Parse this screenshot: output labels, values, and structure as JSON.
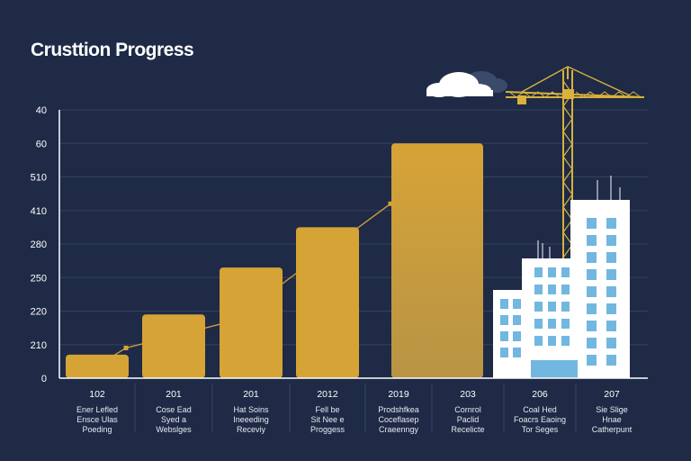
{
  "chart_data": {
    "type": "bar",
    "title": "Crusttion Progress",
    "xlabel": "",
    "ylabel": "",
    "grid": true,
    "y_tick_labels": [
      "0",
      "210",
      "220",
      "250",
      "280",
      "410",
      "510",
      "60",
      "40"
    ],
    "y_tick_values": [
      0,
      1,
      2,
      3,
      4,
      5,
      6,
      7,
      8
    ],
    "ylim": [
      0,
      8
    ],
    "categories": [
      "102",
      "201",
      "201",
      "2012",
      "2019",
      "203",
      "206",
      "207"
    ],
    "category_captions": [
      [
        "Ener Lefled",
        "Ensce Ulas",
        "Poeding"
      ],
      [
        "Cose Ead",
        "Syed a",
        "Webslges"
      ],
      [
        "Hat Soins",
        "Ineeeding",
        "Receviy"
      ],
      [
        "Fell be",
        "Sit Nee e",
        "Proggess"
      ],
      [
        "Prodshfkea",
        "Coceflasep",
        "Craeenngy"
      ],
      [
        "Cornrol",
        "Paclid",
        "Recelicte"
      ],
      [
        "Coal Hed",
        "Foacrs Eaoing",
        "Tor Seges"
      ],
      [
        "Sie Slige",
        "Hnae",
        "Catherpunt"
      ]
    ],
    "values": [
      0.7,
      1.9,
      3.3,
      4.5,
      7.0,
      null,
      null,
      null
    ],
    "trend_points": [
      0.9,
      1.7,
      3.5,
      5.2
    ]
  },
  "colors": {
    "background": "#1e2a46",
    "bar": "#d6a337",
    "bar_light": "#caa14a",
    "grid": "#34415e",
    "axis_text": "#ffffff",
    "building": "#ffffff",
    "window": "#72b7df",
    "crane": "#d9b13b"
  }
}
